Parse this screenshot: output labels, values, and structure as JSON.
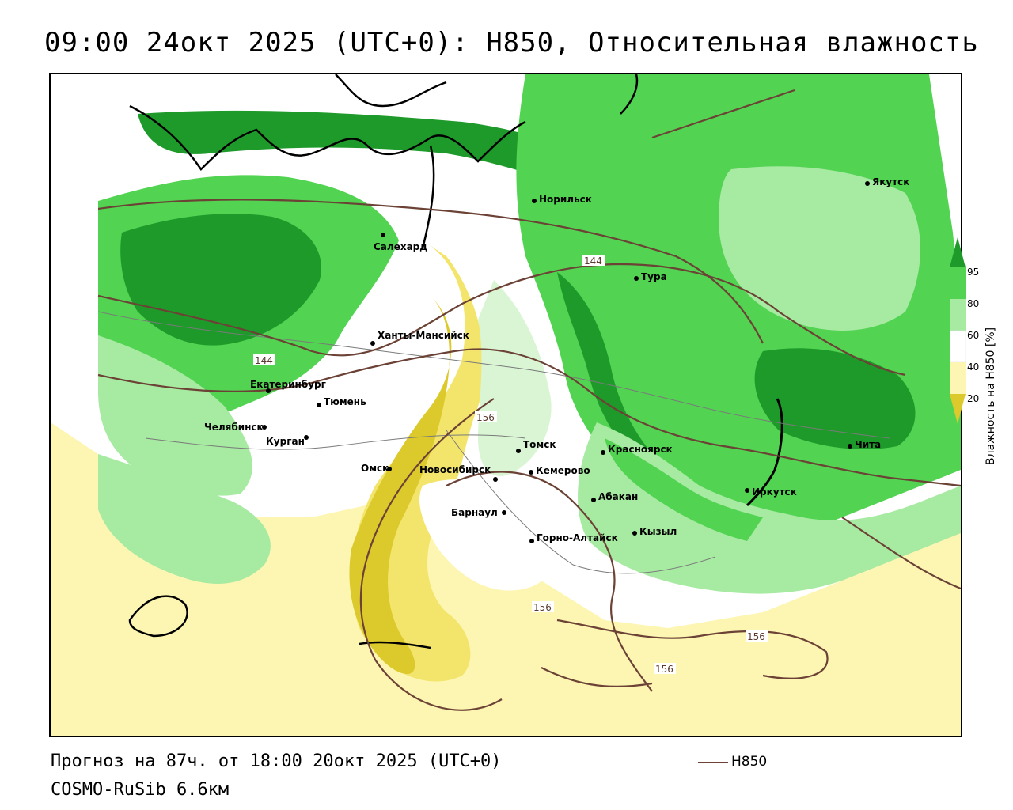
{
  "title": "09:00 24окт 2025 (UTC+0): H850, Относительная влажность",
  "footer": {
    "forecast": "Прогноз на 87ч. от 18:00 20окт 2025 (UTC+0)",
    "model": "COSMO-RuSib 6.6км"
  },
  "legend": {
    "line_label": "H850",
    "line_color": "#6b4235"
  },
  "colorbar": {
    "title": "Влажность на H850 [%]",
    "ticks": [
      "95",
      "80",
      "60",
      "40",
      "20"
    ],
    "colors": {
      "dark_green": "#1e9a2a",
      "green": "#52d352",
      "light_green": "#a7eaa2",
      "pale_green": "#d9f5d4",
      "white": "#ffffff",
      "pale_yellow": "#fdf6b3",
      "yellow": "#f3e56b",
      "dark_yellow": "#dcc92c"
    }
  },
  "contours": {
    "labels": [
      "144",
      "144",
      "156",
      "156",
      "156",
      "156"
    ],
    "color": "#6b4235"
  },
  "cities": [
    {
      "name": "Норильск"
    },
    {
      "name": "Якутск"
    },
    {
      "name": "Салехард"
    },
    {
      "name": "Тура"
    },
    {
      "name": "Ханты-Мансийск"
    },
    {
      "name": "Екатеринбург"
    },
    {
      "name": "Тюмень"
    },
    {
      "name": "Челябинск"
    },
    {
      "name": "Курган"
    },
    {
      "name": "Омск"
    },
    {
      "name": "Новосибирск"
    },
    {
      "name": "Томск"
    },
    {
      "name": "Кемерово"
    },
    {
      "name": "Красноярск"
    },
    {
      "name": "Абакан"
    },
    {
      "name": "Барнаул"
    },
    {
      "name": "Горно-Алтайск"
    },
    {
      "name": "Кызыл"
    },
    {
      "name": "Иркутск"
    },
    {
      "name": "Чита"
    }
  ]
}
